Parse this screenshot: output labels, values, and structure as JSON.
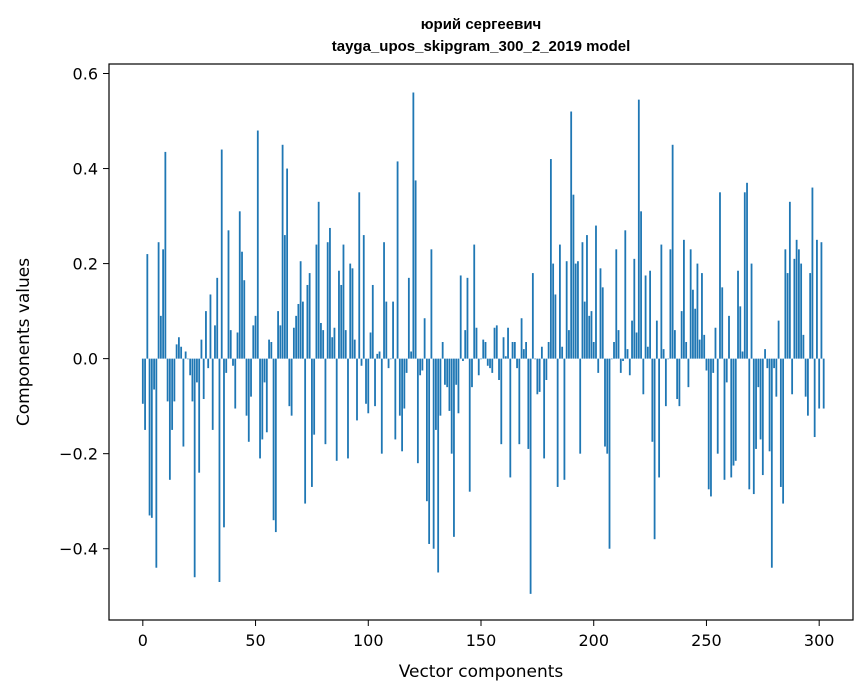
{
  "chart_data": {
    "type": "bar",
    "title_line1": "юрий сергеевич",
    "title_line2": "tayga_upos_skipgram_300_2_2019 model",
    "xlabel": "Vector components",
    "ylabel": "Components values",
    "xlim": [
      -15,
      315
    ],
    "ylim": [
      -0.55,
      0.62
    ],
    "xticks": [
      0,
      50,
      100,
      150,
      200,
      250,
      300
    ],
    "xtick_labels": [
      "0",
      "50",
      "100",
      "150",
      "200",
      "250",
      "300"
    ],
    "yticks": [
      -0.4,
      -0.2,
      0.0,
      0.2,
      0.4,
      0.6
    ],
    "ytick_labels": [
      "−0.4",
      "−0.2",
      "0.0",
      "0.2",
      "0.4",
      "0.6"
    ],
    "bar_color": "#1f77b4",
    "values": [
      -0.095,
      -0.15,
      0.22,
      -0.33,
      -0.335,
      -0.065,
      -0.44,
      0.245,
      0.09,
      0.23,
      0.435,
      -0.09,
      -0.255,
      -0.15,
      -0.09,
      0.03,
      0.045,
      0.025,
      -0.185,
      0.015,
      0.0,
      -0.035,
      -0.09,
      -0.46,
      -0.05,
      -0.24,
      0.04,
      -0.085,
      0.1,
      -0.02,
      0.135,
      -0.15,
      0.07,
      0.17,
      -0.47,
      0.44,
      -0.355,
      -0.03,
      0.27,
      0.06,
      -0.015,
      -0.105,
      0.055,
      0.31,
      0.225,
      0.165,
      -0.12,
      -0.175,
      -0.08,
      0.07,
      0.09,
      0.48,
      -0.21,
      -0.17,
      -0.05,
      -0.155,
      0.04,
      0.035,
      -0.34,
      -0.365,
      0.1,
      0.07,
      0.45,
      0.26,
      0.4,
      -0.1,
      -0.12,
      0.065,
      0.09,
      0.115,
      0.205,
      0.12,
      -0.305,
      0.155,
      0.18,
      -0.27,
      -0.16,
      0.24,
      0.33,
      0.075,
      0.06,
      -0.18,
      0.245,
      0.275,
      0.045,
      0.065,
      -0.215,
      0.185,
      0.155,
      0.24,
      0.06,
      -0.21,
      0.2,
      0.19,
      0.04,
      -0.13,
      0.35,
      -0.015,
      0.26,
      -0.095,
      -0.115,
      0.055,
      0.155,
      -0.1,
      0.01,
      0.015,
      -0.2,
      0.245,
      0.12,
      -0.02,
      0.0,
      0.12,
      -0.17,
      0.415,
      -0.12,
      -0.195,
      -0.105,
      -0.03,
      0.17,
      0.015,
      0.56,
      0.375,
      -0.22,
      -0.035,
      -0.025,
      0.085,
      -0.3,
      -0.39,
      0.23,
      -0.4,
      -0.15,
      -0.45,
      -0.12,
      0.035,
      -0.055,
      -0.06,
      -0.11,
      -0.2,
      -0.375,
      -0.055,
      -0.115,
      0.175,
      -0.005,
      0.06,
      0.17,
      -0.28,
      -0.06,
      0.24,
      0.065,
      -0.035,
      0.0,
      0.04,
      0.035,
      -0.015,
      -0.02,
      -0.03,
      0.065,
      0.07,
      -0.045,
      -0.18,
      0.045,
      0.005,
      0.065,
      -0.25,
      0.035,
      0.035,
      -0.02,
      -0.18,
      0.085,
      0.02,
      0.035,
      -0.19,
      -0.495,
      0.18,
      0.0,
      -0.075,
      -0.07,
      0.025,
      -0.21,
      -0.045,
      0.035,
      0.42,
      0.2,
      0.135,
      -0.27,
      0.24,
      0.025,
      -0.255,
      0.205,
      0.06,
      0.52,
      0.345,
      0.2,
      0.205,
      -0.2,
      0.245,
      0.12,
      0.26,
      0.09,
      0.1,
      0.035,
      0.28,
      -0.03,
      0.19,
      0.15,
      -0.185,
      -0.2,
      -0.4,
      0.0,
      0.035,
      0.23,
      0.06,
      -0.03,
      -0.005,
      0.27,
      0.02,
      -0.035,
      0.08,
      0.21,
      0.055,
      0.545,
      0.31,
      -0.075,
      0.175,
      0.025,
      0.185,
      -0.175,
      -0.38,
      0.08,
      -0.25,
      0.24,
      0.02,
      -0.1,
      0.0,
      0.23,
      0.45,
      0.06,
      -0.085,
      -0.1,
      0.1,
      0.25,
      0.035,
      -0.06,
      0.23,
      0.145,
      0.105,
      0.2,
      0.04,
      0.18,
      0.05,
      -0.025,
      -0.275,
      -0.29,
      -0.03,
      0.065,
      -0.2,
      0.35,
      0.15,
      -0.255,
      -0.05,
      0.09,
      -0.25,
      -0.225,
      -0.215,
      0.185,
      0.11,
      0.015,
      0.35,
      0.37,
      -0.275,
      0.2,
      -0.285,
      -0.19,
      -0.06,
      -0.17,
      -0.245,
      0.02,
      -0.02,
      -0.195,
      -0.44,
      -0.02,
      -0.08,
      0.08,
      -0.27,
      -0.305,
      0.23,
      0.18,
      0.33,
      -0.075,
      0.21,
      0.25,
      0.23,
      0.2,
      0.05,
      -0.08,
      -0.12,
      0.18,
      0.36,
      -0.165,
      0.25,
      -0.105,
      0.245,
      -0.105
    ]
  }
}
